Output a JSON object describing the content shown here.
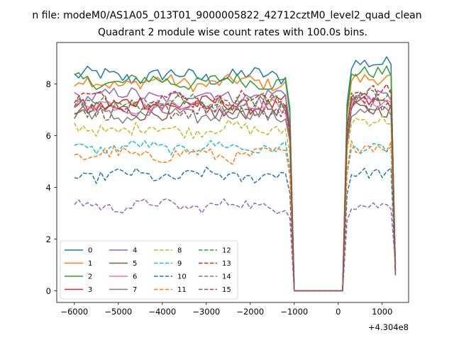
{
  "chart_data": {
    "type": "line",
    "suptitle": "n file: modeM0/AS1A05_013T01_9000005822_42712cztM0_level2_quad_clean",
    "title": "Quadrant 2 module wise count rates with 100.0s bins.",
    "xlabel": "",
    "ylabel": "",
    "x_offset_label": "+4.304e8",
    "xlim": [
      -6400,
      1600
    ],
    "ylim": [
      -0.45,
      9.6
    ],
    "xticks": [
      -6000,
      -5000,
      -4000,
      -3000,
      -2000,
      -1000,
      0,
      1000
    ],
    "xtick_labels": [
      "−6000",
      "−5000",
      "−4000",
      "−3000",
      "−2000",
      "−1000",
      "0",
      "1000"
    ],
    "yticks": [
      0,
      2,
      4,
      6,
      8
    ],
    "ytick_labels": [
      "0",
      "2",
      "4",
      "6",
      "8"
    ],
    "grid": false,
    "legend": {
      "placement": "lower-left",
      "columns": 4
    },
    "gap": {
      "from": -1000,
      "to": 100
    },
    "x_range": {
      "start": -6000,
      "end": 1300,
      "step": 100
    },
    "series": [
      {
        "name": "0",
        "color": "#1f77b4",
        "dash": "solid",
        "level": 8.3,
        "after_level": 8.8,
        "noise": 0.28
      },
      {
        "name": "1",
        "color": "#ff7f0e",
        "dash": "solid",
        "level": 8.05,
        "after_level": 8.2,
        "noise": 0.25
      },
      {
        "name": "2",
        "color": "#2ca02c",
        "dash": "solid",
        "level": 8.1,
        "after_level": 8.45,
        "noise": 0.25
      },
      {
        "name": "3",
        "color": "#d62728",
        "dash": "solid",
        "level": 7.2,
        "after_level": 7.3,
        "noise": 0.28
      },
      {
        "name": "4",
        "color": "#9467bd",
        "dash": "solid",
        "level": 7.55,
        "after_level": 7.5,
        "noise": 0.25
      },
      {
        "name": "5",
        "color": "#8c564b",
        "dash": "solid",
        "level": 6.95,
        "after_level": 7.0,
        "noise": 0.3
      },
      {
        "name": "6",
        "color": "#e377c2",
        "dash": "solid",
        "level": 7.15,
        "after_level": 7.3,
        "noise": 0.25
      },
      {
        "name": "7",
        "color": "#7f7f7f",
        "dash": "solid",
        "level": 6.8,
        "after_level": 6.9,
        "noise": 0.28
      },
      {
        "name": "8",
        "color": "#bcbd22",
        "dash": "dashed",
        "level": 6.25,
        "after_level": 6.6,
        "noise": 0.25
      },
      {
        "name": "9",
        "color": "#17becf",
        "dash": "dashed",
        "level": 5.55,
        "after_level": 5.5,
        "noise": 0.2
      },
      {
        "name": "10",
        "color": "#1f77b4",
        "dash": "dashed",
        "level": 4.45,
        "after_level": 4.55,
        "noise": 0.22
      },
      {
        "name": "11",
        "color": "#ff7f0e",
        "dash": "dashed",
        "level": 5.25,
        "after_level": 5.6,
        "noise": 0.25
      },
      {
        "name": "12",
        "color": "#2ca02c",
        "dash": "dashed",
        "level": 7.3,
        "after_level": 7.6,
        "noise": 0.28
      },
      {
        "name": "13",
        "color": "#d62728",
        "dash": "dashed",
        "level": 7.4,
        "after_level": 7.7,
        "noise": 0.3
      },
      {
        "name": "14",
        "color": "#9467bd",
        "dash": "dashed",
        "level": 3.3,
        "after_level": 3.3,
        "noise": 0.2
      },
      {
        "name": "15",
        "color": "#8c564b",
        "dash": "dashed",
        "level": 7.0,
        "after_level": 7.2,
        "noise": 0.3
      }
    ]
  }
}
